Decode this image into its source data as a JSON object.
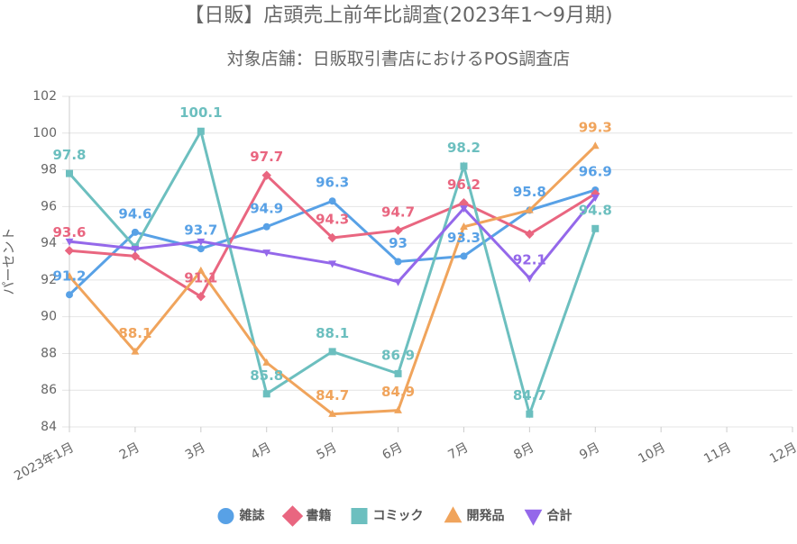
{
  "chart_data": {
    "type": "line",
    "title": "【日販】店頭売上前年比調査(2023年1～9月期)",
    "subtitle": "対象店舗：日販取引書店におけるPOS調査店",
    "y_label": "パーセント",
    "categories": [
      "2023年1月",
      "2月",
      "3月",
      "4月",
      "5月",
      "6月",
      "7月",
      "8月",
      "9月",
      "10月",
      "11月",
      "12月"
    ],
    "ylim": [
      84,
      102
    ],
    "yticks": [
      84,
      86,
      88,
      90,
      92,
      94,
      96,
      98,
      100,
      102
    ],
    "grid": true,
    "legend": "bottom",
    "series": [
      {
        "name": "雑誌",
        "color": "#58a1e6",
        "marker": "circle",
        "values": [
          91.2,
          94.6,
          93.7,
          94.9,
          96.3,
          93,
          93.3,
          95.8,
          96.9,
          null,
          null,
          null
        ],
        "value_labels": [
          "91.2",
          "94.6",
          "93.7",
          "94.9",
          "96.3",
          "93",
          "93.3",
          "95.8",
          "96.9",
          null,
          null,
          null
        ]
      },
      {
        "name": "書籍",
        "color": "#e96680",
        "marker": "diamond",
        "values": [
          93.6,
          93.3,
          91.1,
          97.7,
          94.3,
          94.7,
          96.2,
          94.5,
          96.7,
          null,
          null,
          null
        ],
        "value_labels": [
          "93.6",
          null,
          "91.1",
          "97.7",
          "94.3",
          "94.7",
          "96.2",
          null,
          null,
          null,
          null,
          null
        ]
      },
      {
        "name": "コミック",
        "color": "#6cbfbf",
        "marker": "square",
        "values": [
          97.8,
          93.8,
          100.1,
          85.8,
          88.1,
          86.9,
          98.2,
          84.7,
          94.8,
          null,
          null,
          null
        ],
        "value_labels": [
          "97.8",
          null,
          "100.1",
          "85.8",
          "88.1",
          "86.9",
          "98.2",
          "84.7",
          "94.8",
          null,
          null,
          null
        ]
      },
      {
        "name": "開発品",
        "color": "#f0a45c",
        "marker": "triangle",
        "values": [
          92.2,
          88.1,
          92.5,
          87.5,
          84.7,
          84.9,
          94.9,
          95.8,
          99.3,
          null,
          null,
          null
        ],
        "value_labels": [
          null,
          "88.1",
          null,
          null,
          "84.7",
          "84.9",
          null,
          null,
          "99.3",
          null,
          null,
          null
        ]
      },
      {
        "name": "合計",
        "color": "#9468ea",
        "marker": "triangle-down",
        "values": [
          94.1,
          93.7,
          94.1,
          93.5,
          92.9,
          91.9,
          95.9,
          92.1,
          96.5,
          null,
          null,
          null
        ],
        "value_labels": [
          null,
          null,
          null,
          null,
          null,
          null,
          null,
          "92.1",
          null,
          null,
          null,
          null
        ]
      }
    ]
  }
}
